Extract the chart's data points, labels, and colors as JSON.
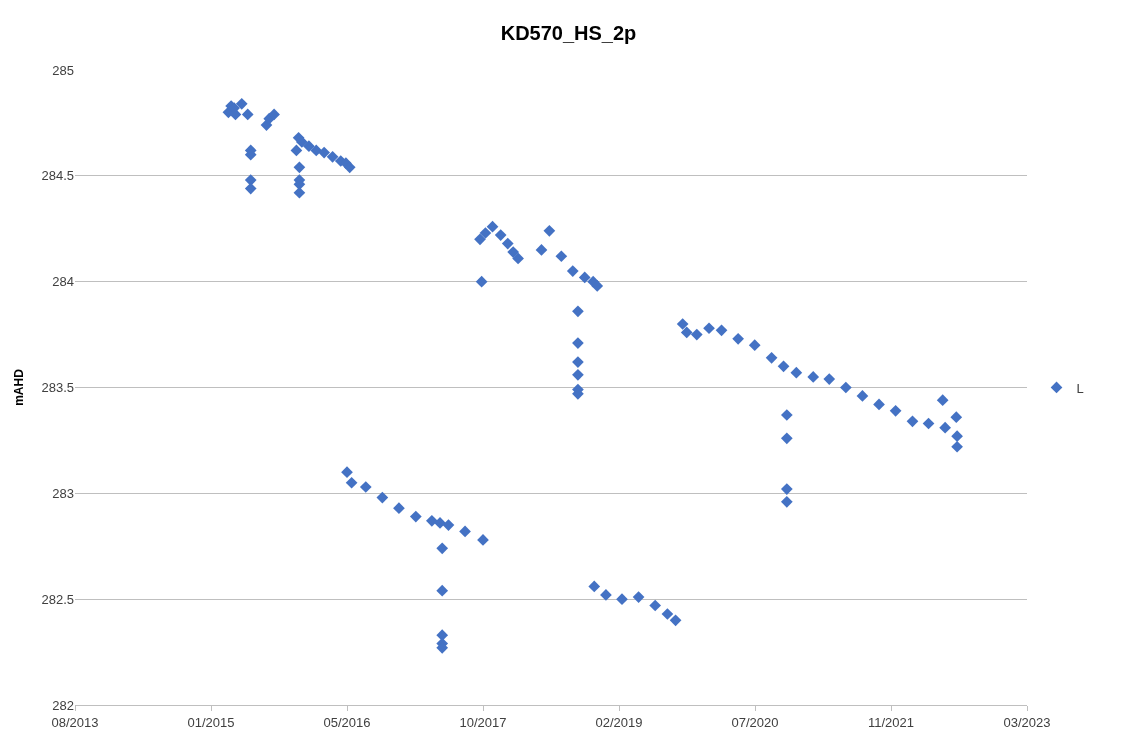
{
  "chart_data": {
    "type": "scatter",
    "title": "KD570_HS_2p",
    "ylabel": "mAHD",
    "xlim": [
      "2013-08-28",
      "2023-03-29"
    ],
    "xticks": [
      {
        "value": "2013-08-28",
        "label": "08/2013"
      },
      {
        "value": "2015-01-10",
        "label": "01/2015"
      },
      {
        "value": "2016-05-24",
        "label": "05/2016"
      },
      {
        "value": "2017-10-06",
        "label": "10/2017"
      },
      {
        "value": "2019-02-18",
        "label": "02/2019"
      },
      {
        "value": "2020-07-02",
        "label": "07/2020"
      },
      {
        "value": "2021-11-14",
        "label": "11/2021"
      },
      {
        "value": "2023-03-29",
        "label": "03/2023"
      }
    ],
    "ylim": [
      282,
      285
    ],
    "yticks": [
      282,
      282.5,
      283,
      283.5,
      284,
      284.5,
      285
    ],
    "grid": "y",
    "legend": "right",
    "marker": "diamond",
    "series": [
      {
        "name": "L",
        "color": "#4472c4",
        "x": [
          "2015-03-15",
          "2015-03-25",
          "2015-04-05",
          "2015-04-10",
          "2015-05-03",
          "2015-05-25",
          "2015-06-05",
          "2015-06-05",
          "2015-06-05",
          "2015-06-05",
          "2015-08-02",
          "2015-08-12",
          "2015-08-30",
          "2015-11-20",
          "2015-11-28",
          "2015-12-01",
          "2015-12-01",
          "2015-12-01",
          "2015-12-01",
          "2015-12-10",
          "2016-01-05",
          "2016-02-01",
          "2016-03-01",
          "2016-04-01",
          "2016-05-01",
          "2016-05-20",
          "2016-06-03",
          "2016-05-24",
          "2016-06-10",
          "2016-08-01",
          "2016-10-01",
          "2016-12-01",
          "2017-02-01",
          "2017-04-01",
          "2017-05-01",
          "2017-06-01",
          "2017-08-01",
          "2017-10-06",
          "2017-05-09",
          "2017-05-09",
          "2017-05-09",
          "2017-05-09",
          "2017-05-09",
          "2017-10-01",
          "2017-09-25",
          "2017-10-15",
          "2017-11-10",
          "2017-12-10",
          "2018-01-05",
          "2018-01-25",
          "2018-02-12",
          "2018-05-09",
          "2018-06-07",
          "2018-07-21",
          "2018-09-01",
          "2018-10-15",
          "2018-11-15",
          "2018-11-30",
          "2018-09-20",
          "2018-09-20",
          "2018-09-20",
          "2018-09-20",
          "2018-09-20",
          "2018-09-20",
          "2018-11-19",
          "2019-01-01",
          "2019-03-01",
          "2019-05-01",
          "2019-07-01",
          "2019-08-15",
          "2019-09-14",
          "2019-10-10",
          "2019-10-25",
          "2019-12-01",
          "2020-01-15",
          "2020-03-01",
          "2020-05-01",
          "2020-07-01",
          "2020-09-01",
          "2020-10-15",
          "2020-12-01",
          "2021-02-01",
          "2021-04-01",
          "2021-06-01",
          "2021-08-01",
          "2021-10-01",
          "2021-12-01",
          "2022-02-01",
          "2022-04-01",
          "2022-06-01",
          "2022-07-15",
          "2022-07-15",
          "2022-05-23",
          "2022-07-12",
          "2020-10-27",
          "2020-10-27",
          "2020-10-27",
          "2020-10-27"
        ],
        "values": [
          284.8,
          284.83,
          284.82,
          284.79,
          284.84,
          284.79,
          284.62,
          284.6,
          284.48,
          284.44,
          284.74,
          284.77,
          284.79,
          284.62,
          284.68,
          284.54,
          284.48,
          284.46,
          284.42,
          284.66,
          284.64,
          284.62,
          284.61,
          284.59,
          284.57,
          284.56,
          284.54,
          283.1,
          283.05,
          283.03,
          282.98,
          282.93,
          282.89,
          282.87,
          282.86,
          282.85,
          282.82,
          282.78,
          282.74,
          282.54,
          282.33,
          282.29,
          282.27,
          284.0,
          284.2,
          284.23,
          284.26,
          284.22,
          284.18,
          284.14,
          284.11,
          284.15,
          284.24,
          284.12,
          284.05,
          284.02,
          284.0,
          283.98,
          283.86,
          283.71,
          283.62,
          283.56,
          283.49,
          283.47,
          282.56,
          282.52,
          282.5,
          282.51,
          282.47,
          282.43,
          282.4,
          283.8,
          283.76,
          283.75,
          283.78,
          283.77,
          283.73,
          283.7,
          283.64,
          283.6,
          283.57,
          283.55,
          283.54,
          283.5,
          283.46,
          283.42,
          283.39,
          283.34,
          283.33,
          283.31,
          283.27,
          283.22,
          283.44,
          283.36,
          283.37,
          283.26,
          283.02,
          282.96
        ]
      }
    ]
  }
}
